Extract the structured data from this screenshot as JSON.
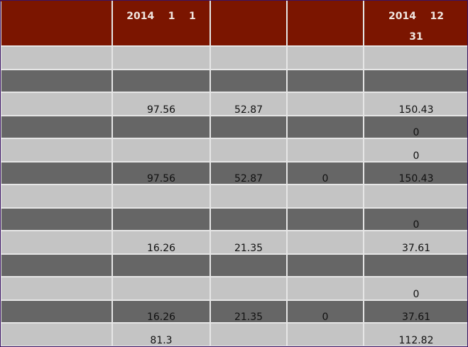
{
  "header": [
    "",
    "2014 1 1",
    "",
    "",
    "2014 12 31"
  ],
  "header_lines": [
    [
      "",
      ""
    ],
    [
      "2014    1    1",
      ""
    ],
    [
      "",
      ""
    ],
    [
      "",
      ""
    ],
    [
      "2014    12",
      "31"
    ]
  ],
  "rows": [
    [
      "",
      "",
      "",
      "",
      ""
    ],
    [
      "",
      "",
      "",
      "",
      ""
    ],
    [
      "",
      "97.56",
      "52.87",
      "",
      "150.43"
    ],
    [
      "",
      "",
      "",
      "",
      "0"
    ],
    [
      "",
      "",
      "",
      "",
      "0"
    ],
    [
      "",
      "97.56",
      "52.87",
      "0",
      "150.43"
    ],
    [
      "",
      "",
      "",
      "",
      ""
    ],
    [
      "",
      "",
      "",
      "",
      "0"
    ],
    [
      "",
      "16.26",
      "21.35",
      "",
      "37.61"
    ],
    [
      "",
      "",
      "",
      "",
      ""
    ],
    [
      "",
      "",
      "",
      "",
      "0"
    ],
    [
      "",
      "16.26",
      "21.35",
      "0",
      "37.61"
    ],
    [
      "",
      "81.3",
      "",
      "",
      "112.82"
    ]
  ],
  "colors": {
    "header_bg": "#7b1500",
    "row_light": "#c4c4c4",
    "row_dark": "#666666",
    "border": "#e6e6e6"
  }
}
